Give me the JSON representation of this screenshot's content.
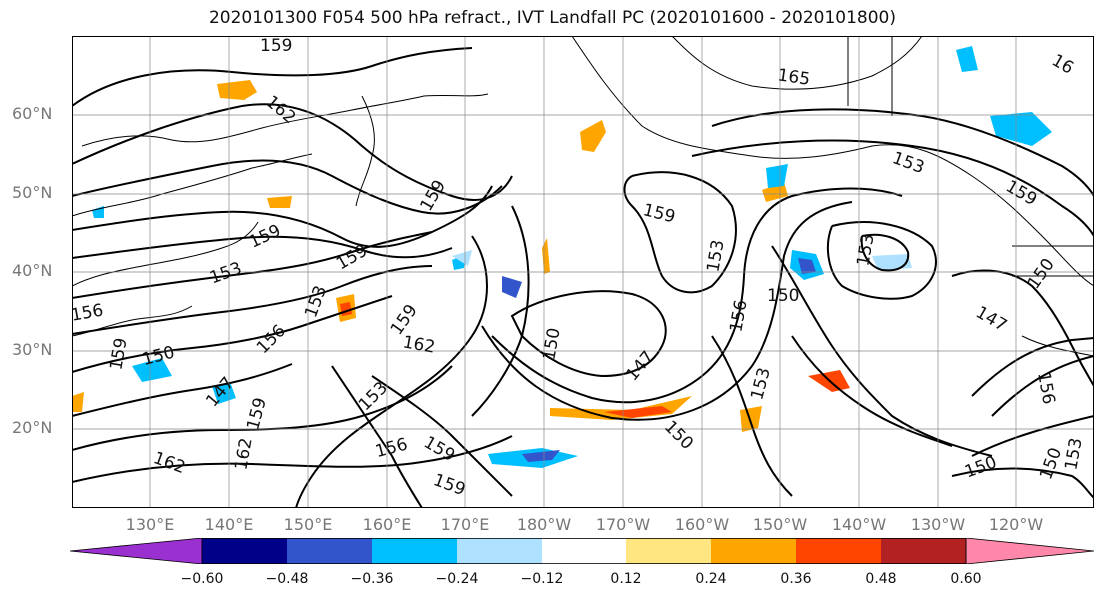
{
  "title": "2020101300 F054 500 hPa refract., IVT Landfall PC (2020101600 - 2020101800)",
  "lat_labels": [
    "60°N",
    "50°N",
    "40°N",
    "30°N",
    "20°N"
  ],
  "lon_labels": [
    "130°E",
    "140°E",
    "150°E",
    "160°E",
    "170°E",
    "180°W",
    "170°W",
    "160°W",
    "150°W",
    "140°W",
    "130°W",
    "120°W"
  ],
  "contour_labels": [
    "159",
    "162",
    "165",
    "162",
    "159",
    "159",
    "159",
    "153",
    "159",
    "159",
    "153",
    "156",
    "159",
    "156",
    "150",
    "150",
    "147",
    "153",
    "162",
    "159",
    "156",
    "159",
    "159",
    "162",
    "150",
    "147",
    "150",
    "153",
    "153",
    "156",
    "150",
    "153",
    "147",
    "153",
    "150",
    "156",
    "150",
    "153",
    "159",
    "16"
  ],
  "colorbar": {
    "ticks": [
      "−0.60",
      "−0.48",
      "−0.36",
      "−0.24",
      "−0.12",
      "0.12",
      "0.24",
      "0.36",
      "0.48",
      "0.60"
    ],
    "colors": [
      "#9b30d0",
      "#000088",
      "#3355cc",
      "#00bfff",
      "#aee0ff",
      "#ffffff",
      "#ffe680",
      "#ffa500",
      "#ff4500",
      "#b22222",
      "#ff88aa"
    ]
  }
}
